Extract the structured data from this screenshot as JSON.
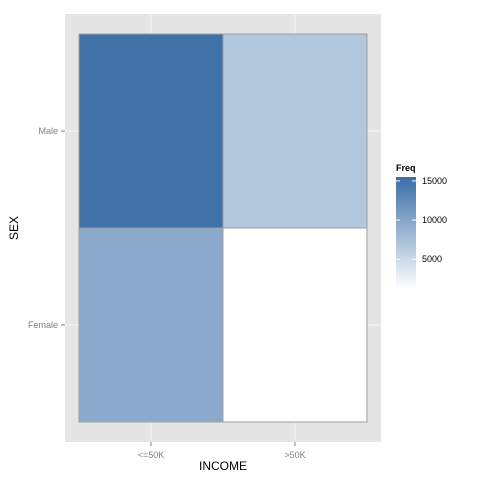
{
  "chart_data": {
    "type": "heatmap",
    "title": "",
    "xlabel": "INCOME",
    "ylabel": "SEX",
    "x_categories": [
      "<=50K",
      ">50K"
    ],
    "y_categories": [
      "Male",
      "Female"
    ],
    "cells": [
      {
        "x": "<=50K",
        "y": "Male",
        "value": 15100
      },
      {
        "x": ">50K",
        "y": "Male",
        "value": 6700
      },
      {
        "x": "<=50K",
        "y": "Female",
        "value": 9600
      },
      {
        "x": ">50K",
        "y": "Female",
        "value": 1200
      }
    ],
    "legend": {
      "title": "Freq",
      "ticks": [
        5000,
        10000,
        15000
      ],
      "tick_labels": [
        "5000",
        "10000",
        "15000"
      ],
      "range": [
        1200,
        15500
      ],
      "position": "right"
    },
    "colors": {
      "low": "#ffffff",
      "high": "#3a6ea6",
      "panel_bg": "#e5e5e5",
      "grid": "#f2f2f2",
      "cell_border": "#9e9e9e"
    },
    "grid": true
  }
}
